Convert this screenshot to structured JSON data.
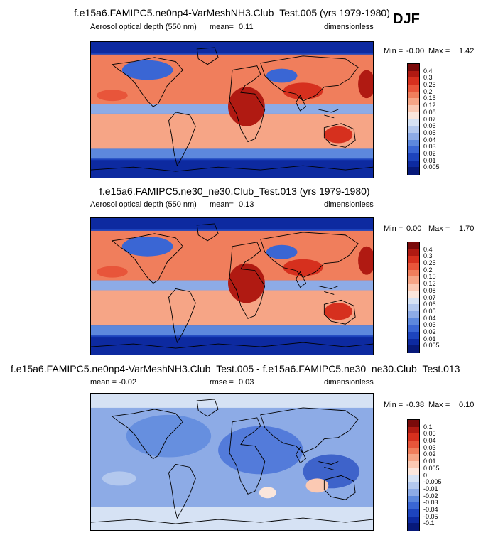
{
  "season": "DJF",
  "panels": [
    {
      "title": "f.e15a6.FAMIPC5.ne0np4-VarMeshNH3.Club_Test.005 (yrs 1979-1980)",
      "left_label": "Aerosol optical depth (550 nm)",
      "stat_label": "mean=",
      "stat_value": "0.11",
      "units": "dimensionless",
      "min_label": "Min =",
      "min_value": "-0.00",
      "max_label": "Max =",
      "max_value": "1.42",
      "colorbar": {
        "labels": [
          "0.4",
          "0.3",
          "0.25",
          "0.2",
          "0.15",
          "0.12",
          "0.08",
          "0.07",
          "0.06",
          "0.05",
          "0.04",
          "0.03",
          "0.02",
          "0.01",
          "0.005"
        ],
        "colors": [
          "#7a0a0a",
          "#b01a12",
          "#d6301e",
          "#e8553a",
          "#f07e5c",
          "#f6a586",
          "#fbc9b3",
          "#fbe6dc",
          "#d6e2f4",
          "#b3c8ee",
          "#8dabe6",
          "#5d88dd",
          "#3a66d4",
          "#1d44bd",
          "#0d2aa0",
          "#07197a"
        ]
      },
      "map_theme": "aod"
    },
    {
      "title": "f.e15a6.FAMIPC5.ne30_ne30.Club_Test.013 (yrs 1979-1980)",
      "left_label": "Aerosol optical depth (550 nm)",
      "stat_label": "mean=",
      "stat_value": "0.13",
      "units": "dimensionless",
      "min_label": "Min =",
      "min_value": "0.00",
      "max_label": "Max =",
      "max_value": "1.70",
      "colorbar": {
        "labels": [
          "0.4",
          "0.3",
          "0.25",
          "0.2",
          "0.15",
          "0.12",
          "0.08",
          "0.07",
          "0.06",
          "0.05",
          "0.04",
          "0.03",
          "0.02",
          "0.01",
          "0.005"
        ],
        "colors": [
          "#7a0a0a",
          "#b01a12",
          "#d6301e",
          "#e8553a",
          "#f07e5c",
          "#f6a586",
          "#fbc9b3",
          "#fbe6dc",
          "#d6e2f4",
          "#b3c8ee",
          "#8dabe6",
          "#5d88dd",
          "#3a66d4",
          "#1d44bd",
          "#0d2aa0",
          "#07197a"
        ]
      },
      "map_theme": "aod"
    },
    {
      "title": "f.e15a6.FAMIPC5.ne0np4-VarMeshNH3.Club_Test.005 - f.e15a6.FAMIPC5.ne30_ne30.Club_Test.013",
      "left_label": "mean = -0.02",
      "stat_label": "rmse =",
      "stat_value": "0.03",
      "units": "dimensionless",
      "min_label": "Min =",
      "min_value": "-0.38",
      "max_label": "Max =",
      "max_value": "0.10",
      "colorbar": {
        "labels": [
          "0.1",
          "0.05",
          "0.04",
          "0.03",
          "0.02",
          "0.01",
          "0.005",
          "0",
          "-0.005",
          "-0.01",
          "-0.02",
          "-0.03",
          "-0.04",
          "-0.05",
          "-0.1"
        ],
        "colors": [
          "#7a0a0a",
          "#b01a12",
          "#d6301e",
          "#e8553a",
          "#f07e5c",
          "#f6a586",
          "#fbc9b3",
          "#fbe6dc",
          "#d6e2f4",
          "#b3c8ee",
          "#8dabe6",
          "#5d88dd",
          "#3a66d4",
          "#1d44bd",
          "#0d2aa0",
          "#07197a"
        ]
      },
      "map_theme": "diff"
    }
  ]
}
